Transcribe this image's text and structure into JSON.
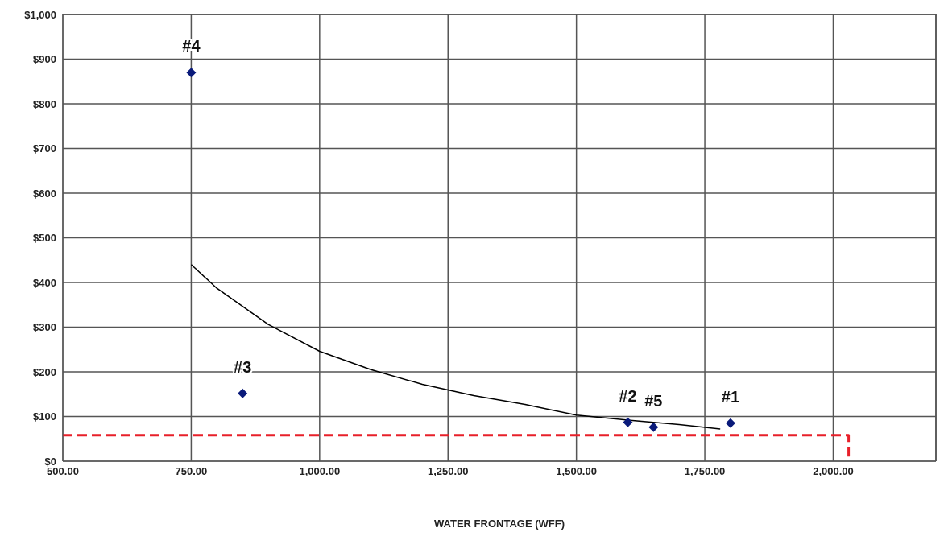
{
  "chart_data": {
    "type": "scatter",
    "xlabel": "WATER FRONTAGE (WFF)",
    "xlim": [
      500,
      2200
    ],
    "ylim": [
      0,
      1000
    ],
    "xticks": [
      {
        "value": 500,
        "label": "500.00"
      },
      {
        "value": 750,
        "label": "750.00"
      },
      {
        "value": 1000,
        "label": "1,000.00"
      },
      {
        "value": 1250,
        "label": "1,250.00"
      },
      {
        "value": 1500,
        "label": "1,500.00"
      },
      {
        "value": 1750,
        "label": "1,750.00"
      },
      {
        "value": 2000,
        "label": "2,000.00"
      }
    ],
    "yticks": [
      {
        "value": 0,
        "label": "$0"
      },
      {
        "value": 100,
        "label": "$100"
      },
      {
        "value": 200,
        "label": "$200"
      },
      {
        "value": 300,
        "label": "$300"
      },
      {
        "value": 400,
        "label": "$400"
      },
      {
        "value": 500,
        "label": "$500"
      },
      {
        "value": 600,
        "label": "$600"
      },
      {
        "value": 700,
        "label": "$700"
      },
      {
        "value": 800,
        "label": "$800"
      },
      {
        "value": 900,
        "label": "$900"
      },
      {
        "value": 1000,
        "label": "$1,000"
      }
    ],
    "grid": true,
    "legend": false,
    "marker": "diamond",
    "series": [
      {
        "color": "#0a1a7a",
        "x": [
          1800,
          1600,
          850,
          750,
          1650
        ],
        "values": [
          85,
          87,
          152,
          870,
          76
        ]
      },
      {
        "type": "line",
        "color": "#000000",
        "line_style": "solid",
        "marker": "none",
        "x": [
          750,
          800,
          900,
          1000,
          1100,
          1200,
          1300,
          1400,
          1500,
          1600,
          1700,
          1780
        ],
        "values": [
          440,
          387,
          306,
          246,
          205,
          172,
          147,
          127,
          103,
          92,
          82,
          72
        ]
      },
      {
        "type": "line",
        "color": "#e8202a",
        "line_style": "dashed",
        "marker": "none",
        "x": [
          500,
          2030,
          2030
        ],
        "values": [
          58,
          58,
          0
        ]
      }
    ],
    "annotations": [
      {
        "text": "#1",
        "x": 1800,
        "y": 85
      },
      {
        "text": "#2",
        "x": 1600,
        "y": 87
      },
      {
        "text": "#3",
        "x": 850,
        "y": 152
      },
      {
        "text": "#4",
        "x": 750,
        "y": 870
      },
      {
        "text": "#5",
        "x": 1650,
        "y": 76
      }
    ]
  }
}
